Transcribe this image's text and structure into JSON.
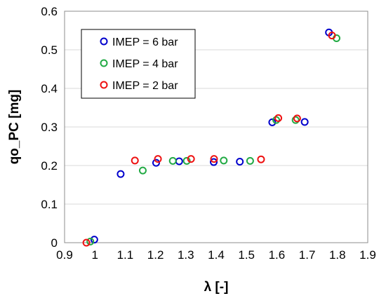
{
  "chart_data": {
    "type": "scatter",
    "xlabel": "λ [-]",
    "ylabel": "qo_PC [mg]",
    "xlim": [
      0.9,
      1.9
    ],
    "ylim": [
      0,
      0.6
    ],
    "xticks": [
      "0.9",
      "1",
      "1.1",
      "1.2",
      "1.3",
      "1.4",
      "1.5",
      "1.6",
      "1.7",
      "1.8",
      "1.9"
    ],
    "yticks": [
      "0",
      "0.1",
      "0.2",
      "0.3",
      "0.4",
      "0.5",
      "0.6"
    ],
    "xtick_values": [
      0.9,
      1.0,
      1.1,
      1.2,
      1.3,
      1.4,
      1.5,
      1.6,
      1.7,
      1.8,
      1.9
    ],
    "ytick_values": [
      0,
      0.1,
      0.2,
      0.3,
      0.4,
      0.5,
      0.6
    ],
    "grid": "horizontal",
    "legend_position": "top-left",
    "marker": "open-circle",
    "series": [
      {
        "name": "IMEP = 6 bar",
        "color": "#0000CC",
        "points": [
          [
            0.998,
            0.008
          ],
          [
            1.085,
            0.178
          ],
          [
            1.202,
            0.207
          ],
          [
            1.278,
            0.211
          ],
          [
            1.392,
            0.209
          ],
          [
            1.478,
            0.21
          ],
          [
            1.585,
            0.312
          ],
          [
            1.692,
            0.313
          ],
          [
            1.772,
            0.545
          ]
        ]
      },
      {
        "name": "IMEP = 4 bar",
        "color": "#22AA44",
        "points": [
          [
            0.985,
            0.003
          ],
          [
            1.158,
            0.187
          ],
          [
            1.257,
            0.212
          ],
          [
            1.303,
            0.212
          ],
          [
            1.425,
            0.213
          ],
          [
            1.512,
            0.212
          ],
          [
            1.598,
            0.318
          ],
          [
            1.662,
            0.318
          ],
          [
            1.797,
            0.53
          ]
        ]
      },
      {
        "name": "IMEP = 2 bar",
        "color": "#EE1111",
        "points": [
          [
            0.972,
            0.0
          ],
          [
            1.132,
            0.213
          ],
          [
            1.208,
            0.217
          ],
          [
            1.317,
            0.217
          ],
          [
            1.393,
            0.217
          ],
          [
            1.548,
            0.216
          ],
          [
            1.605,
            0.323
          ],
          [
            1.667,
            0.322
          ],
          [
            1.782,
            0.537
          ]
        ]
      }
    ]
  }
}
